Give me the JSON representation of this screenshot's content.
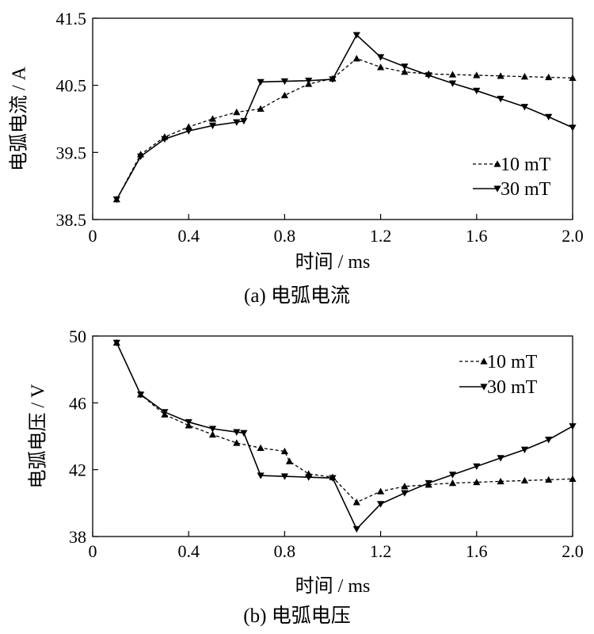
{
  "chart_data": [
    {
      "type": "line",
      "caption": "(a)  电弧电流",
      "xlabel": "时间 / ms",
      "ylabel": "电弧电流 / A",
      "xlim": [
        0,
        2.0
      ],
      "ylim": [
        38.5,
        41.5
      ],
      "xticks": [
        0,
        0.4,
        0.8,
        1.2,
        1.6,
        2.0
      ],
      "xtick_labels": [
        "0",
        "0.4",
        "0.8",
        "1.2",
        "1.6",
        "2.0"
      ],
      "yticks": [
        38.5,
        39.5,
        40.5,
        41.5
      ],
      "ytick_labels": [
        "38.5",
        "39.5",
        "40.5",
        "41.5"
      ],
      "grid": false,
      "legend_position": "right",
      "series": [
        {
          "name": "10 mT",
          "style": "dashed",
          "marker": "triangle-up",
          "color": "#000000",
          "x": [
            0.1,
            0.2,
            0.3,
            0.4,
            0.5,
            0.6,
            0.7,
            0.8,
            0.9,
            1.0,
            1.1,
            1.2,
            1.3,
            1.4,
            1.5,
            1.6,
            1.7,
            1.8,
            1.9,
            2.0
          ],
          "y": [
            38.8,
            39.47,
            39.73,
            39.88,
            40.0,
            40.1,
            40.15,
            40.35,
            40.52,
            40.6,
            40.9,
            40.77,
            40.7,
            40.67,
            40.66,
            40.65,
            40.64,
            40.63,
            40.62,
            40.61
          ]
        },
        {
          "name": "30 mT",
          "style": "solid",
          "marker": "triangle-down",
          "color": "#000000",
          "x": [
            0.1,
            0.2,
            0.3,
            0.4,
            0.5,
            0.6,
            0.63,
            0.7,
            0.8,
            0.9,
            1.0,
            1.1,
            1.2,
            1.3,
            1.4,
            1.5,
            1.6,
            1.7,
            1.8,
            1.9,
            2.0
          ],
          "y": [
            38.8,
            39.44,
            39.7,
            39.82,
            39.9,
            39.95,
            39.97,
            40.55,
            40.56,
            40.57,
            40.59,
            41.25,
            40.92,
            40.78,
            40.65,
            40.53,
            40.42,
            40.3,
            40.18,
            40.03,
            39.87
          ]
        }
      ]
    },
    {
      "type": "line",
      "caption": "(b)  电弧电压",
      "xlabel": "时间 / ms",
      "ylabel": "电弧电压 / V",
      "xlim": [
        0,
        2.0
      ],
      "ylim": [
        38,
        50
      ],
      "xticks": [
        0,
        0.4,
        0.8,
        1.2,
        1.6,
        2.0
      ],
      "xtick_labels": [
        "0",
        "0.4",
        "0.8",
        "1.2",
        "1.6",
        "2.0"
      ],
      "yticks": [
        38,
        42,
        46,
        50
      ],
      "ytick_labels": [
        "38",
        "42",
        "46",
        "50"
      ],
      "grid": false,
      "legend_position": "top-right",
      "series": [
        {
          "name": "10 mT",
          "style": "dashed",
          "marker": "triangle-up",
          "color": "#000000",
          "x": [
            0.1,
            0.2,
            0.3,
            0.4,
            0.5,
            0.6,
            0.7,
            0.8,
            0.82,
            0.9,
            1.0,
            1.1,
            1.2,
            1.3,
            1.4,
            1.5,
            1.6,
            1.7,
            1.8,
            1.9,
            2.0
          ],
          "y": [
            49.6,
            46.5,
            45.3,
            44.65,
            44.1,
            43.6,
            43.3,
            43.1,
            42.5,
            41.75,
            41.55,
            40.05,
            40.7,
            41.0,
            41.1,
            41.2,
            41.25,
            41.3,
            41.35,
            41.4,
            41.45
          ]
        },
        {
          "name": "30 mT",
          "style": "solid",
          "marker": "triangle-down",
          "color": "#000000",
          "x": [
            0.1,
            0.2,
            0.3,
            0.4,
            0.5,
            0.6,
            0.63,
            0.7,
            0.8,
            0.9,
            1.0,
            1.1,
            1.2,
            1.3,
            1.4,
            1.5,
            1.6,
            1.7,
            1.8,
            1.9,
            2.0
          ],
          "y": [
            49.6,
            46.5,
            45.45,
            44.85,
            44.45,
            44.25,
            44.2,
            41.65,
            41.6,
            41.55,
            41.5,
            38.45,
            39.95,
            40.6,
            41.2,
            41.7,
            42.2,
            42.7,
            43.2,
            43.8,
            44.6
          ]
        }
      ]
    }
  ]
}
